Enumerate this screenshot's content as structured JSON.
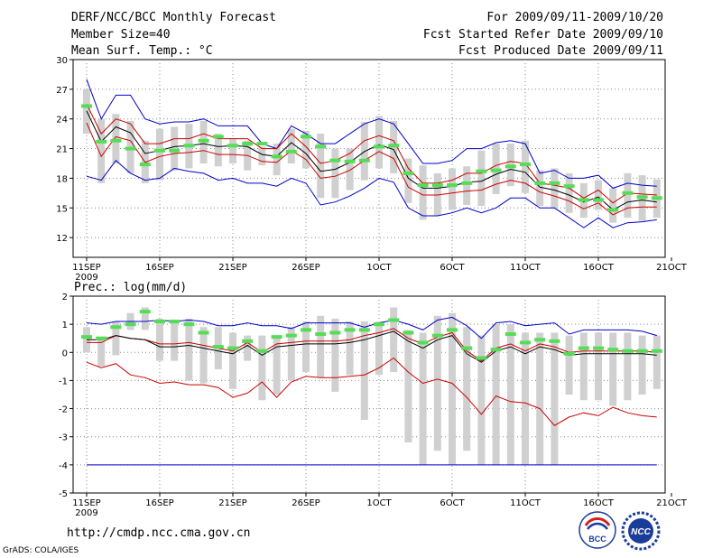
{
  "header": {
    "title": "DERF/NCC/BCC Monthly Forecast",
    "member_size": "Member Size=40",
    "variable": "Mean Surf. Temp.: °C",
    "period": "For 2009/09/11-2009/10/20",
    "refer_date": "Fcst Started Refer Date 2009/09/10",
    "produced_date": "Fcst Produced Date 2009/09/11"
  },
  "footer": {
    "url": "http://cmdp.ncc.cma.gov.cn",
    "grads": "GrADS: COLA/IGES",
    "logo_bcc": "BCC",
    "logo_ncc": "NCC"
  },
  "chart_data": [
    {
      "type": "line",
      "name": "temperature",
      "title": "Mean Surf. Temp.: °C",
      "ylim": [
        10,
        30
      ],
      "yticks": [
        "30",
        "27",
        "24",
        "21",
        "18",
        "15",
        "12"
      ],
      "xticks": [
        {
          "day": 1,
          "label": "11SEP"
        },
        {
          "day": 6,
          "label": "16SEP"
        },
        {
          "day": 11,
          "label": "21SEP"
        },
        {
          "day": 16,
          "label": "26SEP"
        },
        {
          "day": 21,
          "label": "1OCT"
        },
        {
          "day": 26,
          "label": "6OCT"
        },
        {
          "day": 31,
          "label": "11OCT"
        },
        {
          "day": 36,
          "label": "16OCT"
        },
        {
          "day": 41,
          "label": "21OCT"
        }
      ],
      "year_label": "2009",
      "x": [
        1,
        2,
        3,
        4,
        5,
        6,
        7,
        8,
        9,
        10,
        11,
        12,
        13,
        14,
        15,
        16,
        17,
        18,
        19,
        20,
        21,
        22,
        23,
        24,
        25,
        26,
        27,
        28,
        29,
        30,
        31,
        32,
        33,
        34,
        35,
        36,
        37,
        38,
        39,
        40
      ],
      "series": [
        {
          "name": "max",
          "color": "#0000cc",
          "values": [
            28,
            24,
            26.4,
            26.4,
            24,
            23.5,
            23.7,
            23.7,
            24,
            23.3,
            23.3,
            23.3,
            21.5,
            21,
            23.3,
            22.5,
            21.5,
            21.5,
            22.5,
            23.5,
            24,
            23.5,
            21.5,
            19.5,
            19.5,
            19.8,
            21,
            21,
            21.6,
            21.8,
            21.5,
            18.5,
            18.8,
            18,
            18,
            18.3,
            17,
            17.5,
            17.3,
            17.2
          ]
        },
        {
          "name": "upper",
          "color": "#cc0000",
          "values": [
            25.5,
            22.5,
            24,
            23.5,
            21.5,
            21.5,
            22,
            22,
            22.5,
            22,
            22,
            22,
            21,
            21,
            22.5,
            21.2,
            19.5,
            19.8,
            20.5,
            21.8,
            22.3,
            21.8,
            19,
            17.5,
            17.5,
            17.8,
            18.5,
            18.5,
            19.3,
            19.7,
            19.5,
            17.5,
            17.3,
            17,
            16,
            16.8,
            15.5,
            16.5,
            16.4,
            16.3
          ]
        },
        {
          "name": "mean",
          "color": "#000000",
          "values": [
            24.8,
            21.7,
            23.2,
            22.6,
            20.5,
            20.8,
            21.2,
            21.3,
            21.5,
            21.2,
            21.3,
            21.2,
            20.4,
            20.2,
            21.6,
            20.5,
            18.7,
            18.9,
            19.6,
            20.7,
            21.4,
            20.9,
            18,
            17,
            17,
            17.2,
            17.6,
            17.7,
            18.4,
            18.9,
            18.6,
            17.1,
            16.8,
            16.3,
            15.6,
            16.1,
            14.8,
            15.6,
            15.8,
            15.6
          ]
        },
        {
          "name": "lower",
          "color": "#cc0000",
          "values": [
            23.6,
            20.2,
            22.2,
            21.8,
            19.6,
            20.2,
            20.5,
            20.6,
            20.8,
            20.4,
            20.4,
            20.3,
            19.7,
            19.6,
            20.8,
            19.9,
            18,
            18.2,
            18.8,
            19.8,
            20.7,
            20,
            17.1,
            16.3,
            16.3,
            16.5,
            16.7,
            16.8,
            17.4,
            17.8,
            17.5,
            16.6,
            16.2,
            15.7,
            14.9,
            15.5,
            14.3,
            15,
            15.1,
            15.1
          ]
        },
        {
          "name": "min",
          "color": "#0000cc",
          "values": [
            18.2,
            17.8,
            19.8,
            18.5,
            17.8,
            18,
            19,
            18.7,
            18.5,
            17.8,
            18,
            17.5,
            17.5,
            17.2,
            18,
            17.5,
            15.3,
            15.6,
            16.2,
            17,
            18,
            17.6,
            15,
            14.2,
            14.2,
            14.5,
            15,
            14.5,
            15,
            16,
            16,
            15,
            15,
            14,
            13,
            14,
            13,
            13.5,
            13.6,
            13.8
          ]
        }
      ],
      "bars": {
        "color": "#d0d0d0",
        "low": [
          22.5,
          17.5,
          19.5,
          18.5,
          17.5,
          17.8,
          18.8,
          19,
          19.5,
          19.2,
          19.5,
          18.8,
          19.3,
          18.3,
          19.5,
          19,
          16,
          16,
          16.8,
          17.8,
          19,
          18.5,
          15.5,
          13.8,
          14.2,
          14.8,
          15.3,
          15.2,
          16.4,
          17.2,
          16.5,
          15.2,
          15,
          14.5,
          14,
          14.8,
          13.5,
          14,
          13.7,
          14
        ],
        "high": [
          27,
          24,
          24.5,
          23.8,
          21.8,
          23,
          23.2,
          23.5,
          23.8,
          22.5,
          22,
          21.8,
          21.2,
          21.5,
          23,
          22.8,
          22.5,
          21,
          21,
          23.7,
          24.3,
          23.8,
          20,
          19.3,
          18.5,
          19,
          19.2,
          20.8,
          21.5,
          21.5,
          21.8,
          18.8,
          19,
          18.5,
          17.5,
          17.8,
          17,
          18.5,
          18.3,
          17.9
        ]
      },
      "ensemble_marker": {
        "color": "#55dd55",
        "values": [
          25.3,
          21.7,
          21.8,
          21,
          19.4,
          20.8,
          20.8,
          21.3,
          21.8,
          22.2,
          21.3,
          21.5,
          21.5,
          20.2,
          20.7,
          22.2,
          21.2,
          19.8,
          19.7,
          19.8,
          21.2,
          21.3,
          18.5,
          17.3,
          17.3,
          17.3,
          17.5,
          18.7,
          18.8,
          19.2,
          19.4,
          17.5,
          17.5,
          17.2,
          15.8,
          15.8,
          14.8,
          16.5,
          16.1,
          16
        ]
      }
    },
    {
      "type": "line",
      "name": "precipitation",
      "title": "Prec.: log(mm/d)",
      "ylim": [
        -5,
        2
      ],
      "yticks": [
        "2",
        "1",
        "0",
        "-1",
        "-2",
        "-3",
        "-4",
        "-5"
      ],
      "xticks": [
        {
          "day": 1,
          "label": "11SEP"
        },
        {
          "day": 6,
          "label": "16SEP"
        },
        {
          "day": 11,
          "label": "21SEP"
        },
        {
          "day": 16,
          "label": "26SEP"
        },
        {
          "day": 21,
          "label": "1OCT"
        },
        {
          "day": 26,
          "label": "6OCT"
        },
        {
          "day": 31,
          "label": "11OCT"
        },
        {
          "day": 36,
          "label": "16OCT"
        },
        {
          "day": 41,
          "label": "21OCT"
        }
      ],
      "year_label": "2009",
      "x": [
        1,
        2,
        3,
        4,
        5,
        6,
        7,
        8,
        9,
        10,
        11,
        12,
        13,
        14,
        15,
        16,
        17,
        18,
        19,
        20,
        21,
        22,
        23,
        24,
        25,
        26,
        27,
        28,
        29,
        30,
        31,
        32,
        33,
        34,
        35,
        36,
        37,
        38,
        39,
        40
      ],
      "series": [
        {
          "name": "max",
          "color": "#0000cc",
          "values": [
            1.05,
            1,
            1.1,
            1.1,
            1.1,
            1.15,
            1.1,
            1.15,
            1.1,
            0.95,
            0.95,
            1.05,
            0.95,
            0.95,
            0.85,
            1.05,
            1.05,
            1.05,
            1.05,
            0.9,
            1.05,
            1.15,
            1,
            0.8,
            1.15,
            1.25,
            0.95,
            0.5,
            1.05,
            1.1,
            0.95,
            1,
            1.05,
            0.65,
            0.8,
            0.8,
            0.8,
            0.8,
            0.75,
            0.6
          ]
        },
        {
          "name": "upper",
          "color": "#cc0000",
          "values": [
            0.35,
            0.35,
            0.6,
            0.5,
            0.45,
            0.3,
            0.3,
            0.35,
            0.25,
            0.15,
            0.05,
            0.35,
            0,
            0.3,
            0.35,
            0.4,
            0.4,
            0.4,
            0.45,
            0.6,
            0.7,
            0.85,
            0.5,
            0.3,
            0.55,
            0.7,
            0.05,
            -0.3,
            0.15,
            0.3,
            0.05,
            0.3,
            0.2,
            0,
            0.05,
            0.05,
            0.05,
            0.05,
            0.05,
            0
          ]
        },
        {
          "name": "mean",
          "color": "#000000",
          "values": [
            0.45,
            0.45,
            0.6,
            0.5,
            0.45,
            0.2,
            0.2,
            0.25,
            0.15,
            0.05,
            -0.05,
            0.25,
            -0.1,
            0.2,
            0.25,
            0.3,
            0.3,
            0.3,
            0.35,
            0.45,
            0.6,
            0.75,
            0.4,
            0.15,
            0.45,
            0.6,
            -0.05,
            -0.35,
            0.05,
            0.2,
            -0.05,
            0.2,
            0.1,
            -0.1,
            -0.05,
            -0.05,
            -0.05,
            -0.05,
            -0.05,
            -0.1
          ]
        },
        {
          "name": "lower",
          "color": "#cc0000",
          "values": [
            -0.35,
            -0.55,
            -0.4,
            -0.8,
            -0.9,
            -1.1,
            -1.05,
            -1.15,
            -1.15,
            -1.25,
            -1.6,
            -1.45,
            -1.05,
            -1.6,
            -1.05,
            -0.85,
            -0.9,
            -0.9,
            -0.85,
            -0.8,
            -0.55,
            -0.2,
            -0.7,
            -1.1,
            -0.95,
            -1.1,
            -1.6,
            -2.2,
            -1.55,
            -1.75,
            -1.8,
            -2,
            -2.6,
            -2.3,
            -2.15,
            -2.25,
            -1.95,
            -2.15,
            -2.25,
            -2.3
          ]
        },
        {
          "name": "min",
          "color": "#0000cc",
          "values": [
            -4,
            -4,
            -4,
            -4,
            -4,
            -4,
            -4,
            -4,
            -4,
            -4,
            -4,
            -4,
            -4,
            -4,
            -4,
            -4,
            -4,
            -4,
            -4,
            -4,
            -4,
            -4,
            -4,
            -4,
            -4,
            -4,
            -4,
            -4,
            -4,
            -4,
            -4,
            -4,
            -4,
            -4,
            -4,
            -4,
            -4,
            -4,
            -4,
            -4
          ]
        }
      ],
      "bars": {
        "color": "#d0d0d0",
        "low": [
          0,
          -0.5,
          -0.1,
          0.8,
          0.8,
          -0.3,
          -0.3,
          -1,
          -1.1,
          -0.6,
          -1.3,
          -0.3,
          -1.7,
          -1.5,
          -1,
          -0.7,
          -0.9,
          -1.4,
          -0.8,
          -2.4,
          -0.8,
          -0.7,
          -3.2,
          -4,
          -3.5,
          -4,
          -3.5,
          -4,
          -4,
          -4,
          -4,
          -4,
          -4,
          -1.5,
          -1.7,
          -1.7,
          -1.9,
          -1.7,
          -1.5,
          -1.3
        ],
        "high": [
          0.9,
          0.5,
          1.1,
          1.4,
          1.6,
          1.2,
          1.1,
          1.2,
          0.9,
          0.9,
          0.7,
          0.6,
          0.6,
          0.6,
          0.9,
          1.1,
          1.3,
          1.2,
          1.1,
          1.1,
          1.1,
          1.6,
          0.8,
          0.7,
          1.3,
          1.4,
          0.9,
          0.6,
          1,
          1,
          0.7,
          0.7,
          0.7,
          0.6,
          0.7,
          0.7,
          0.7,
          0.7,
          0.6,
          0.6
        ]
      },
      "ensemble_marker": {
        "color": "#55dd55",
        "values": [
          0.55,
          0.5,
          0.9,
          1,
          1.45,
          1.1,
          1.1,
          1,
          0.7,
          0.2,
          0.15,
          0.4,
          0.05,
          0.55,
          0.6,
          0.8,
          0.65,
          0.7,
          0.8,
          0.8,
          1,
          1.15,
          0.7,
          0.35,
          0.6,
          0.8,
          0.15,
          -0.2,
          0.1,
          0.65,
          0.35,
          0.45,
          0.4,
          -0.05,
          0.15,
          0.15,
          0.1,
          0.05,
          0.05,
          0.05
        ]
      }
    }
  ]
}
